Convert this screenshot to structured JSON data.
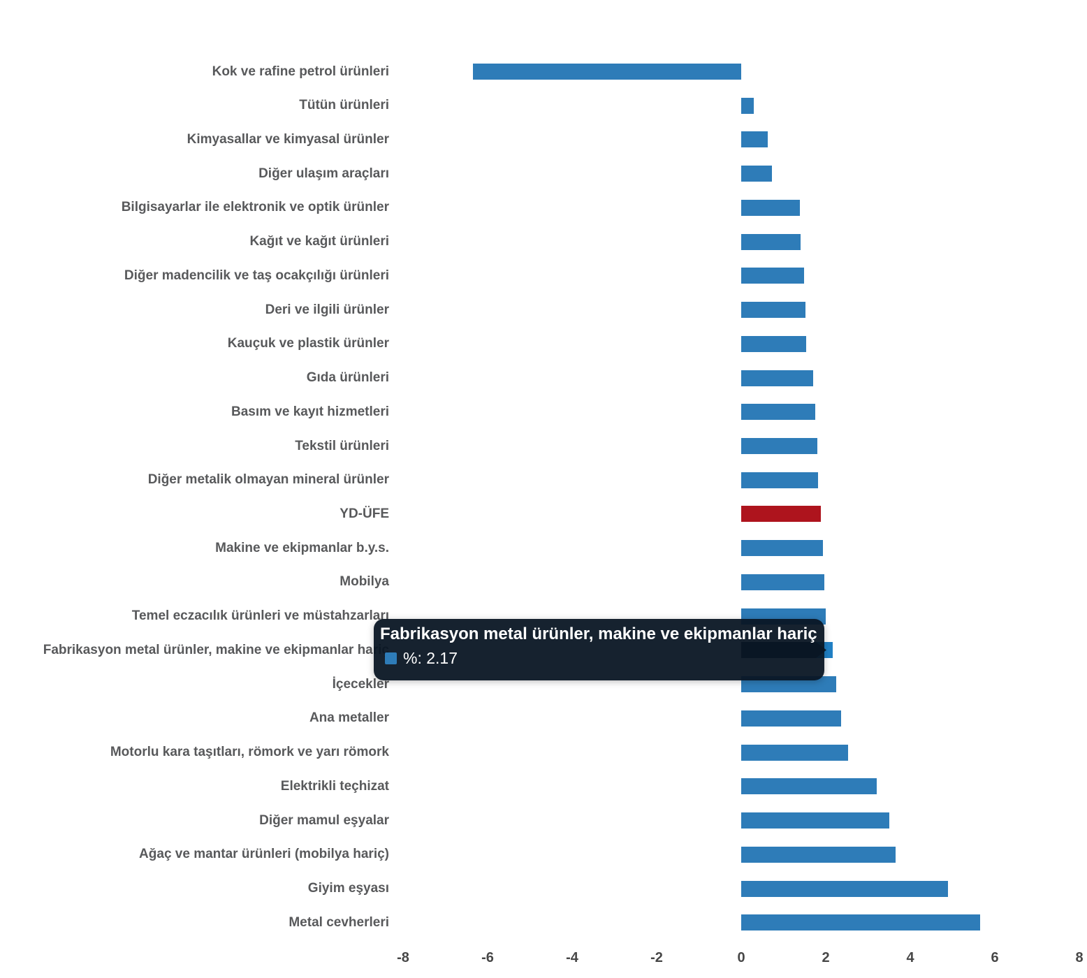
{
  "chart_data": {
    "type": "bar",
    "orientation": "horizontal",
    "title": "",
    "unit": "%",
    "categories": [
      "Kok ve rafine petrol ürünleri",
      "Tütün ürünleri",
      "Kimyasallar ve kimyasal ürünler",
      "Diğer ulaşım araçları",
      "Bilgisayarlar ile elektronik ve optik ürünler",
      "Kağıt ve kağıt ürünleri",
      "Diğer madencilik ve taş ocakçılığı ürünleri",
      "Deri ve ilgili ürünler",
      "Kauçuk ve plastik ürünler",
      "Gıda ürünleri",
      "Basım ve kayıt hizmetleri",
      "Tekstil ürünleri",
      "Diğer metalik olmayan mineral ürünler",
      "YD-ÜFE",
      "Makine ve ekipmanlar b.y.s.",
      "Mobilya",
      "Temel eczacılık ürünleri ve müstahzarları",
      "Fabrikasyon metal ürünler, makine ve ekipmanlar hariç",
      "İçecekler",
      "Ana metaller",
      "Motorlu kara taşıtları, römork ve yarı römork",
      "Elektrikli teçhizat",
      "Diğer mamul eşyalar",
      "Ağaç ve mantar ürünleri (mobilya hariç)",
      "Giyim eşyası",
      "Metal cevherleri"
    ],
    "values": [
      -6.34,
      0.29,
      0.62,
      0.73,
      1.39,
      1.41,
      1.48,
      1.52,
      1.53,
      1.7,
      1.75,
      1.8,
      1.81,
      1.88,
      1.94,
      1.96,
      2.0,
      2.17,
      2.24,
      2.37,
      2.53,
      3.21,
      3.5,
      3.66,
      4.89,
      5.65
    ],
    "bar_color": "#2E7CB8",
    "emphasis": {
      "index": 13,
      "label": "YD-ÜFE",
      "color": "#AE141D"
    },
    "hover": {
      "index": 17,
      "label": "Fabrikasyon metal ürünler, makine ve ekipmanlar hariç",
      "bar_color": "#0E2130",
      "arrow_color": "#2180C4"
    },
    "xlabel": "",
    "ylabel": "",
    "xlim": [
      -8,
      8
    ],
    "axis_ticks": [
      "-8",
      "-6",
      "-4",
      "-2",
      "0",
      "2",
      "4",
      "6",
      "8"
    ],
    "grid": false,
    "legend_position": "none",
    "label_color": "#58595B",
    "axis_label_color": "#474747"
  },
  "tooltip": {
    "title": "Fabrikasyon metal ürünler, makine ve ekipmanlar hariç",
    "value_label": "%: 2.17",
    "swatch_color": "#2E7CB8",
    "background": "#091624"
  }
}
